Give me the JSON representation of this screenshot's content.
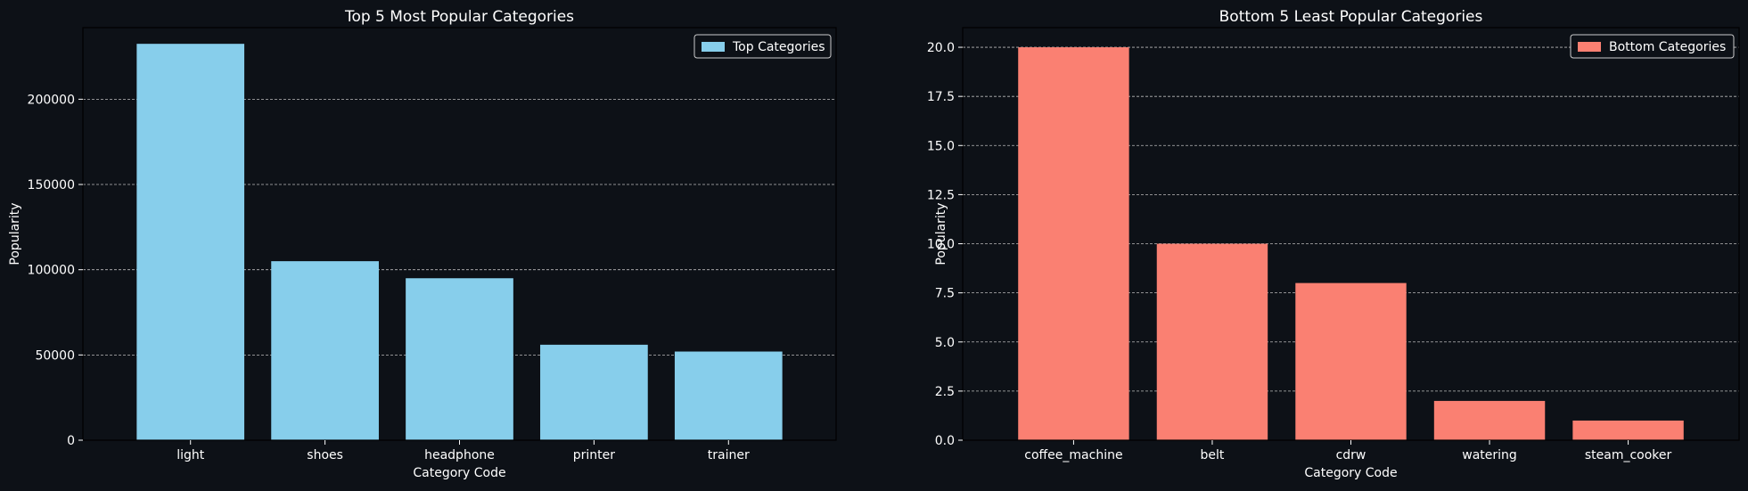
{
  "theme": {
    "background": "#0d1117",
    "axes_face": "#0d1117",
    "axis_edge": "#000000",
    "text": "#ffffff",
    "grid": "#bbbbbb"
  },
  "chart_data": [
    {
      "type": "bar",
      "title": "Top 5 Most Popular Categories",
      "xlabel": "Category Code",
      "ylabel": "Popularity",
      "categories": [
        "light",
        "shoes",
        "headphone",
        "printer",
        "trainer"
      ],
      "series": [
        {
          "name": "Top Categories",
          "color": "#87ceeb",
          "values": [
            232500,
            105000,
            95000,
            56000,
            52000
          ]
        }
      ],
      "ylim": [
        0,
        242000
      ],
      "yticks": [
        0,
        50000,
        100000,
        150000,
        200000
      ],
      "ytick_labels": [
        "0",
        "50000",
        "100000",
        "150000",
        "200000"
      ],
      "grid": "y-dashed",
      "legend": "top-right"
    },
    {
      "type": "bar",
      "title": "Bottom 5 Least Popular Categories",
      "xlabel": "Category Code",
      "ylabel": "Popularity",
      "categories": [
        "coffee_machine",
        "belt",
        "cdrw",
        "watering",
        "steam_cooker"
      ],
      "series": [
        {
          "name": "Bottom Categories",
          "color": "#fa8072",
          "values": [
            20,
            10,
            8,
            2,
            1
          ]
        }
      ],
      "ylim": [
        0,
        21
      ],
      "yticks": [
        0,
        2.5,
        5,
        7.5,
        10,
        12.5,
        15,
        17.5,
        20
      ],
      "ytick_labels": [
        "0.0",
        "2.5",
        "5.0",
        "7.5",
        "10.0",
        "12.5",
        "15.0",
        "17.5",
        "20.0"
      ],
      "grid": "y-dashed",
      "legend": "top-right"
    }
  ]
}
